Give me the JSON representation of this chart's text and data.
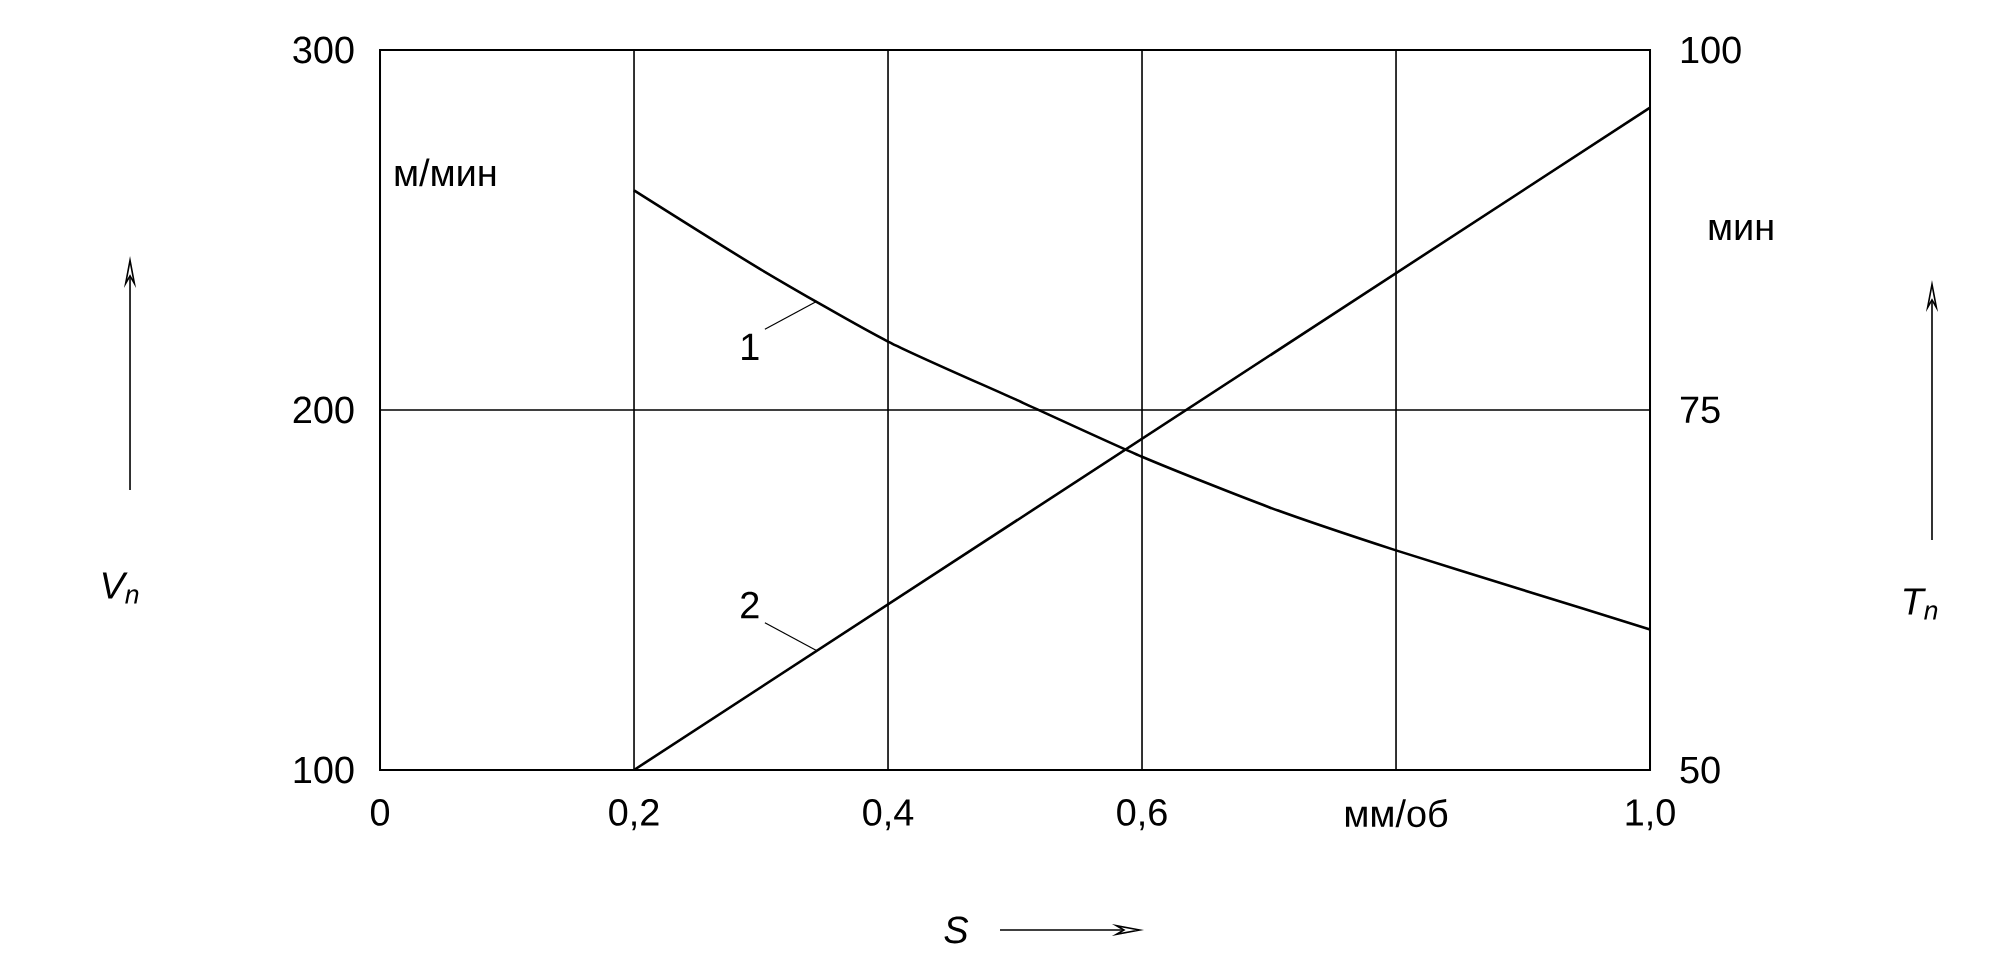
{
  "chart_data": {
    "type": "line",
    "xlabel": "S",
    "ylabel": "V$_{n}$",
    "y2label": "T$_{n}$",
    "annotations": [
      "м/мин",
      "мин"
    ],
    "xlim": [
      0,
      1.0
    ],
    "ylim": [
      100,
      300
    ],
    "y2lim": [
      50,
      100
    ],
    "xticks": [
      0,
      {
        "value": 0.2,
        "label": "0,2"
      },
      {
        "value": 0.4,
        "label": "0,4"
      },
      {
        "value": 0.6,
        "label": "0,6"
      },
      {
        "value": 0.8,
        "label": "мм/об"
      },
      {
        "value": 1.0,
        "label": "1,0"
      }
    ],
    "yticks": [
      100,
      200,
      300
    ],
    "y2ticks": [
      50,
      75,
      100
    ],
    "grid": true,
    "series": [
      {
        "name": "1",
        "color": "#000000",
        "x": [
          0.2,
          0.3,
          0.4,
          0.5,
          0.6,
          0.7,
          0.8,
          0.9,
          1.0
        ],
        "values": [
          261,
          239,
          219,
          203,
          187,
          173,
          161,
          150,
          139
        ]
      },
      {
        "name": "2",
        "color": "#000000",
        "axis": "y2",
        "x": [
          0.2,
          1.0
        ],
        "values": [
          50,
          96
        ]
      }
    ]
  }
}
